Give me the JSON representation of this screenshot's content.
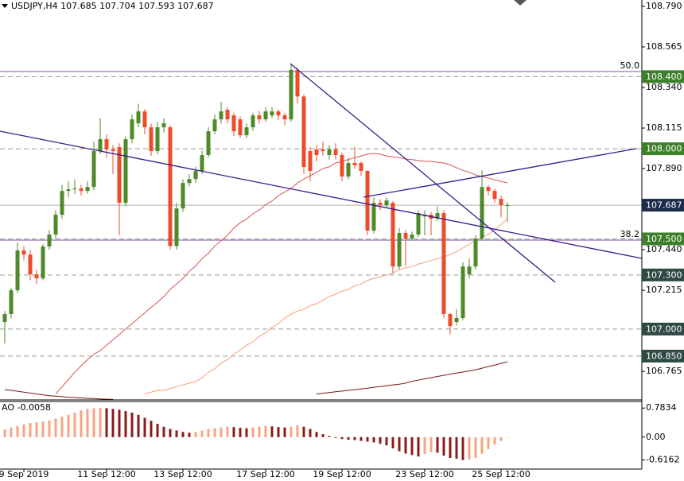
{
  "chart_data": {
    "type": "candlestick",
    "title": "USDJPY,H4 107.685 107.704 107.593 107.687",
    "categories": [
      null,
      null,
      null,
      "9 Sep 2019",
      null,
      null,
      null,
      null,
      null,
      null,
      null,
      null,
      null,
      null,
      null,
      null,
      "11 Sep 12:00",
      null,
      null,
      null,
      null,
      null,
      null,
      null,
      null,
      null,
      null,
      null,
      "13 Sep 12:00",
      null,
      null,
      null,
      null,
      null,
      null,
      null,
      null,
      null,
      null,
      null,
      null,
      "17 Sep 12:00",
      null,
      null,
      null,
      null,
      null,
      null,
      null,
      null,
      null,
      null,
      null,
      "19 Sep 12:00",
      null,
      null,
      null,
      null,
      null,
      null,
      null,
      null,
      null,
      null,
      null,
      null,
      "23 Sep 12:00",
      null,
      null,
      null,
      null,
      null,
      null,
      null,
      null,
      null,
      null,
      null,
      "25 Sep 12:00",
      null
    ],
    "open": [
      107.039,
      107.083,
      107.215,
      107.436,
      107.413,
      107.303,
      107.281,
      107.458,
      107.524,
      107.634,
      107.766,
      107.775,
      107.78,
      107.766,
      107.788,
      107.987,
      108.053,
      107.996,
      108.009,
      107.7,
      108.053,
      108.141,
      108.207,
      108.119,
      107.987,
      108.119,
      108.119,
      107.46,
      107.669,
      107.81,
      107.832,
      107.877,
      107.965,
      108.097,
      108.163,
      108.216,
      108.185,
      108.163,
      108.075,
      108.119,
      108.185,
      108.163,
      108.185,
      108.207,
      108.185,
      108.163,
      108.437,
      108.29,
      107.987,
      107.996,
      107.996,
      107.965,
      107.996,
      107.965,
      107.846,
      107.921,
      107.921,
      107.877,
      107.546,
      107.7,
      107.687,
      107.7,
      107.347,
      107.533,
      107.502,
      107.524,
      107.625,
      107.634,
      107.612,
      107.643,
      107.083,
      107.039,
      107.061,
      107.303,
      107.347,
      107.502,
      107.788,
      107.766,
      107.722,
      107.685
    ],
    "high": [
      107.1,
      107.23,
      107.48,
      107.46,
      107.44,
      107.33,
      107.47,
      107.55,
      107.66,
      107.8,
      107.82,
      107.83,
      107.8,
      107.82,
      108.04,
      108.17,
      108.08,
      108.02,
      108.03,
      108.07,
      108.19,
      108.25,
      108.22,
      108.14,
      108.15,
      108.17,
      108.13,
      107.7,
      107.83,
      107.86,
      107.9,
      107.99,
      108.12,
      108.19,
      108.26,
      108.23,
      108.2,
      108.18,
      108.14,
      108.2,
      108.21,
      108.23,
      108.23,
      108.22,
      108.2,
      108.47,
      108.45,
      108.3,
      108.01,
      108.02,
      108.04,
      108.02,
      108.03,
      107.98,
      107.95,
      108.01,
      107.93,
      107.88,
      107.73,
      107.72,
      107.73,
      107.71,
      107.56,
      107.55,
      107.54,
      107.66,
      107.66,
      107.65,
      107.68,
      107.66,
      107.09,
      107.11,
      107.37,
      107.39,
      107.52,
      107.88,
      107.8,
      107.78,
      107.74,
      107.704
    ],
    "low": [
      106.92,
      107.06,
      107.2,
      107.38,
      107.27,
      107.25,
      107.27,
      107.44,
      107.5,
      107.61,
      107.73,
      107.75,
      107.74,
      107.75,
      107.77,
      107.97,
      107.95,
      107.86,
      107.52,
      107.68,
      108.03,
      108.12,
      108.08,
      107.96,
      107.97,
      108.09,
      107.44,
      107.44,
      107.65,
      107.79,
      107.81,
      107.86,
      107.95,
      108.08,
      108.14,
      108.14,
      108.07,
      108.06,
      108.06,
      108.1,
      108.14,
      108.15,
      108.17,
      108.16,
      108.13,
      108.15,
      108.25,
      107.86,
      107.82,
      107.93,
      107.96,
      107.94,
      107.94,
      107.82,
      107.83,
      107.89,
      107.85,
      107.52,
      107.53,
      107.66,
      107.67,
      107.31,
      107.33,
      107.35,
      107.49,
      107.51,
      107.52,
      107.52,
      107.6,
      107.06,
      106.97,
      107.02,
      107.05,
      107.28,
      107.33,
      107.49,
      107.74,
      107.7,
      107.62,
      107.593
    ],
    "close": [
      107.083,
      107.215,
      107.436,
      107.413,
      107.303,
      107.281,
      107.458,
      107.524,
      107.634,
      107.766,
      107.775,
      107.78,
      107.766,
      107.788,
      107.987,
      108.053,
      107.996,
      107.987,
      107.7,
      108.053,
      108.163,
      108.207,
      108.119,
      107.987,
      108.119,
      108.141,
      107.46,
      107.669,
      107.81,
      107.832,
      107.877,
      107.965,
      108.097,
      108.163,
      108.207,
      108.163,
      108.097,
      108.075,
      108.119,
      108.185,
      108.163,
      108.207,
      108.207,
      108.185,
      108.163,
      108.437,
      108.29,
      107.899,
      107.877,
      107.965,
      107.987,
      107.996,
      107.965,
      107.846,
      107.921,
      107.908,
      107.877,
      107.546,
      107.7,
      107.687,
      107.713,
      107.347,
      107.533,
      107.502,
      107.524,
      107.643,
      107.634,
      107.612,
      107.643,
      107.083,
      107.016,
      107.061,
      107.347,
      107.347,
      107.502,
      107.788,
      107.766,
      107.722,
      107.687,
      107.687
    ],
    "up_color": "#4e8a2a",
    "down_color": "#ee4b2b",
    "ylim": [
      106.607,
      108.825
    ],
    "yticks": [
      {
        "value": 108.79,
        "label": "108.790"
      },
      108.565,
      {
        "value": 108.34,
        "label": "108.340"
      },
      108.115,
      {
        "value": 107.89,
        "label": "107.890"
      },
      {
        "value": 107.44,
        "label": "107.440"
      },
      107.215,
      106.765
    ],
    "levels": [
      {
        "value": 108.4,
        "label": "108.400",
        "color": "#3d7f2a",
        "style": "dashed"
      },
      {
        "value": 108.0,
        "label": "108.000",
        "color": "#3d7f2a",
        "style": "dashed"
      },
      {
        "value": 107.687,
        "label": "107.687",
        "color": "#1c2b4a",
        "style": "solid"
      },
      {
        "value": 107.5,
        "label": "107.500",
        "color": "#3d7f2a",
        "style": "dashed"
      },
      {
        "value": 107.3,
        "label": "107.300",
        "color": "#2f4a44",
        "style": "dashed"
      },
      {
        "value": 107.0,
        "label": "107.000",
        "color": "#2f4a44",
        "style": "dashed"
      },
      {
        "value": 106.85,
        "label": "106.850",
        "color": "#2f4a44",
        "style": "dashed"
      }
    ],
    "overlays": [
      {
        "color": "#d9534f",
        "values": [
          null,
          null,
          null,
          null,
          null,
          null,
          null,
          null,
          106.641,
          106.68,
          106.72,
          106.76,
          106.796,
          106.83,
          106.86,
          106.88,
          106.91,
          106.94,
          106.97,
          107.0,
          107.03,
          107.06,
          107.09,
          107.12,
          107.149,
          107.18,
          107.22,
          107.25,
          107.28,
          107.32,
          107.35,
          107.39,
          107.42,
          107.46,
          107.49,
          107.52,
          107.56,
          107.59,
          107.61,
          107.64,
          107.66,
          107.69,
          107.71,
          107.74,
          107.76,
          107.78,
          107.81,
          107.832,
          107.85,
          107.87,
          107.89,
          107.9,
          107.921,
          107.93,
          107.94,
          107.95,
          107.96,
          107.97,
          107.974,
          107.97,
          107.96,
          107.955,
          107.95,
          107.943,
          107.94,
          107.935,
          107.93,
          107.93,
          107.925,
          107.921,
          107.91,
          107.895,
          107.88,
          107.87,
          107.855,
          107.846,
          107.837,
          107.828,
          107.819,
          107.81
        ]
      },
      {
        "color": "#f4a07a",
        "values": [
          null,
          null,
          null,
          null,
          null,
          null,
          null,
          null,
          null,
          null,
          null,
          null,
          null,
          null,
          null,
          null,
          null,
          null,
          null,
          null,
          null,
          null,
          106.64,
          106.65,
          106.66,
          106.66,
          106.67,
          106.68,
          106.69,
          106.7,
          106.708,
          106.73,
          106.76,
          106.78,
          106.81,
          106.83,
          106.86,
          106.884,
          106.91,
          106.93,
          106.96,
          106.98,
          107.01,
          107.03,
          107.06,
          107.083,
          107.1,
          107.11,
          107.13,
          107.14,
          107.16,
          107.18,
          107.193,
          107.21,
          107.22,
          107.24,
          107.25,
          107.27,
          107.281,
          107.29,
          107.3,
          107.31,
          107.33,
          107.34,
          107.347,
          107.36,
          107.37,
          107.38,
          107.39,
          107.4,
          107.413,
          107.43,
          107.45,
          107.47,
          107.49,
          107.51,
          107.524,
          107.55,
          107.58,
          107.612
        ]
      },
      {
        "color": "#7a1414",
        "values": [
          106.664,
          106.66,
          106.655,
          106.65,
          106.645,
          106.64,
          106.635,
          106.63,
          106.628,
          106.625,
          106.622,
          106.62,
          106.618,
          106.616,
          106.614,
          106.612,
          106.611,
          106.61,
          null,
          null,
          null,
          null,
          null,
          null,
          null,
          null,
          null,
          null,
          null,
          null,
          null,
          null,
          null,
          null,
          null,
          null,
          null,
          null,
          null,
          null,
          null,
          null,
          null,
          null,
          null,
          null,
          null,
          null,
          null,
          106.64,
          106.644,
          106.648,
          106.652,
          106.656,
          106.66,
          106.664,
          106.668,
          106.672,
          106.677,
          106.681,
          106.686,
          106.69,
          106.694,
          106.7,
          106.71,
          106.717,
          106.724,
          106.73,
          106.737,
          106.743,
          106.75,
          106.756,
          106.762,
          106.768,
          106.774,
          106.783,
          106.792,
          106.8,
          106.81,
          106.818
        ]
      }
    ],
    "annotations": [
      "50.0",
      "38.2"
    ],
    "indicator": {
      "label": "AO -0.0058",
      "values": [
        0.21,
        0.26,
        0.3,
        0.34,
        0.38,
        0.4,
        0.42,
        0.45,
        0.5,
        0.55,
        0.6,
        0.66,
        0.72,
        0.76,
        0.78,
        0.7834,
        0.78,
        0.76,
        0.74,
        0.7,
        0.66,
        0.6,
        0.52,
        0.44,
        0.36,
        0.28,
        0.22,
        0.18,
        0.14,
        0.12,
        0.14,
        0.18,
        0.22,
        0.24,
        0.26,
        0.28,
        0.27,
        0.25,
        0.24,
        0.26,
        0.28,
        0.3,
        0.29,
        0.27,
        0.26,
        0.28,
        0.32,
        0.28,
        0.22,
        0.14,
        0.08,
        0.03,
        -0.02,
        -0.05,
        -0.07,
        -0.08,
        -0.1,
        -0.12,
        -0.14,
        -0.18,
        -0.22,
        -0.3,
        -0.38,
        -0.44,
        -0.48,
        -0.52,
        -0.45,
        -0.4,
        -0.42,
        -0.5,
        -0.56,
        -0.58,
        -0.6162,
        -0.6,
        -0.56,
        -0.45,
        -0.32,
        -0.2,
        -0.1,
        -0.0058
      ],
      "ylim": [
        -0.86,
        0.96
      ],
      "yticks": [
        0.7834,
        {
          "value": 0,
          "label": "0.00"
        },
        -0.6162
      ],
      "up_color": "#f4a582",
      "down_color": "#8b1a1a"
    }
  }
}
